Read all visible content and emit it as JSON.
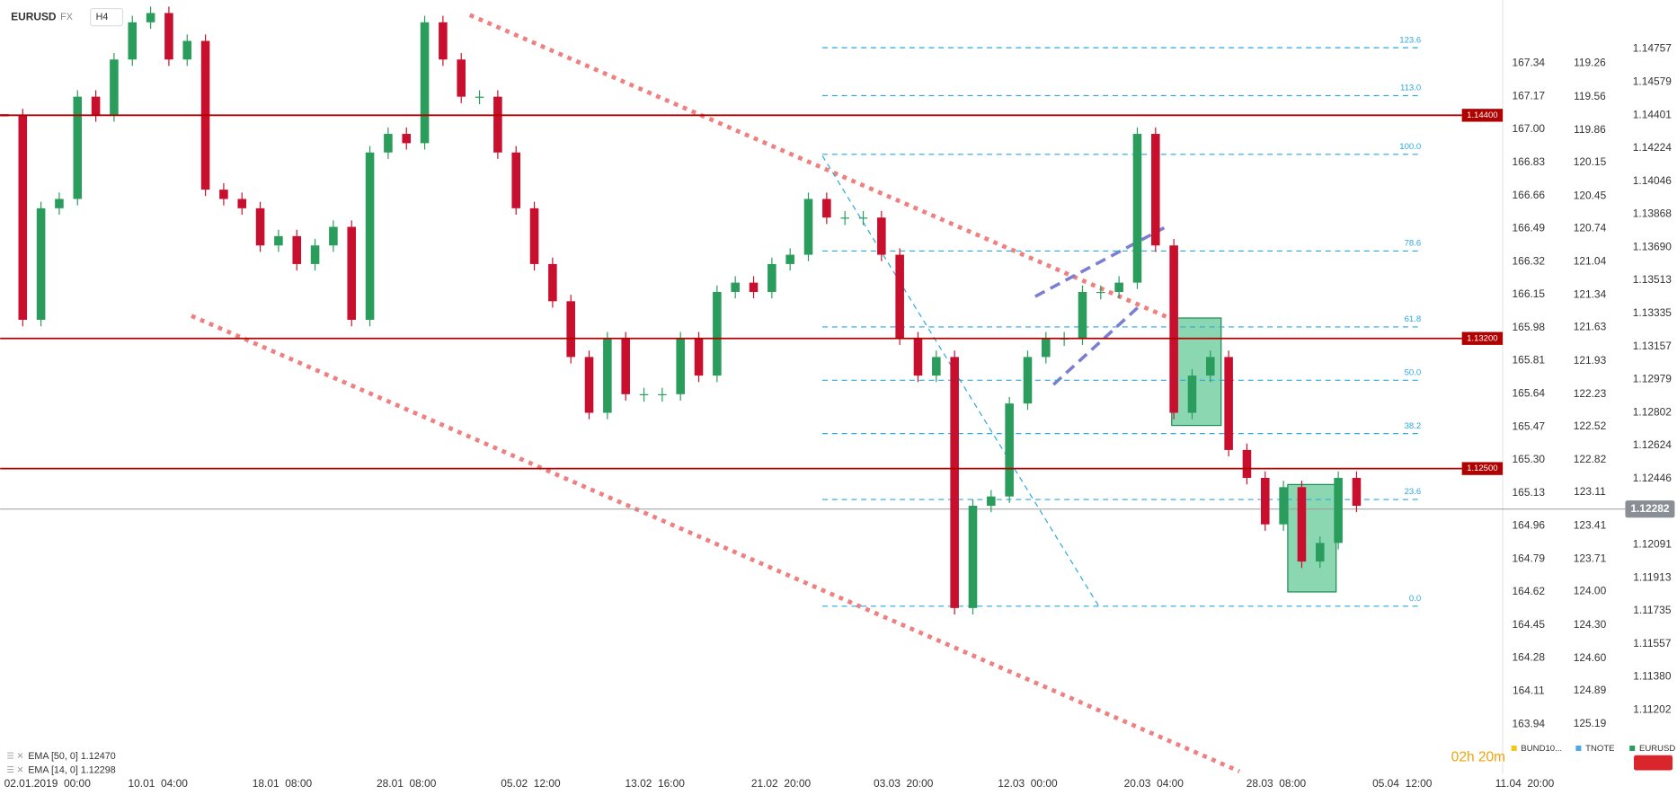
{
  "header": {
    "symbol": "EURUSD",
    "market": "FX",
    "interval": "H4"
  },
  "chart_data": {
    "type": "candlestick",
    "series": [
      {
        "name": "EURUSD",
        "up_color": "#2a9d5c",
        "down_color": "#c8102e",
        "values": [
          1.144,
          1.133,
          1.139,
          1.1395,
          1.145,
          1.144,
          1.147,
          1.149,
          1.1495,
          1.147,
          1.148,
          1.14,
          1.1395,
          1.139,
          1.137,
          1.1375,
          1.136,
          1.137,
          1.138,
          1.133,
          1.142,
          1.143,
          1.1425,
          1.149,
          1.147,
          1.145,
          1.145,
          1.142,
          1.139,
          1.136,
          1.134,
          1.131,
          1.128,
          1.132,
          1.129,
          1.129,
          1.129,
          1.132,
          1.13,
          1.1345,
          1.135,
          1.1345,
          1.136,
          1.1365,
          1.1395,
          1.1385,
          1.1385,
          1.1385,
          1.1365,
          1.132,
          1.13,
          1.131,
          1.1175,
          1.123,
          1.1235,
          1.1285,
          1.131,
          1.132,
          1.132,
          1.1345,
          1.1345,
          1.135,
          1.143,
          1.137,
          1.128,
          1.13,
          1.131,
          1.126,
          1.1245,
          1.122,
          1.124,
          1.12,
          1.121,
          1.1245,
          1.123
        ]
      }
    ],
    "xlim": [
      -0.235,
      82
    ],
    "xticks": [
      {
        "value": 2.35,
        "label": "02.01.2019  00:00"
      },
      {
        "value": 8.4,
        "label": "10.01  04:00"
      },
      {
        "value": 15.2,
        "label": "18.01  08:00"
      },
      {
        "value": 22,
        "label": "28.01  08:00"
      },
      {
        "value": 28.8,
        "label": "05.02  12:00"
      },
      {
        "value": 35.6,
        "label": "13.02  16:00"
      },
      {
        "value": 42.5,
        "label": "21.02  20:00"
      },
      {
        "value": 49.2,
        "label": "03.03  20:00"
      },
      {
        "value": 56,
        "label": "12.03  00:00"
      },
      {
        "value": 62.9,
        "label": "20.03  04:00"
      },
      {
        "value": 69.6,
        "label": "28.03  08:00"
      },
      {
        "value": 76.5,
        "label": "05.04  12:00"
      },
      {
        "value": 83.2,
        "label": "11.04  20:00"
      }
    ],
    "ylim": [
      1.1086,
      1.1502
    ],
    "yticks": [
      1.14757,
      1.14579,
      1.14401,
      1.14224,
      1.14046,
      1.13868,
      {
        "value": 1.1369,
        "label": "1.13690"
      },
      1.13513,
      1.13335,
      1.13157,
      1.12979,
      1.12802,
      1.12624,
      1.12446,
      1.12091,
      1.11913,
      1.11735,
      1.11557,
      {
        "value": 1.1138,
        "label": "1.11380"
      },
      1.11202
    ],
    "axes": [
      {
        "name": "BUND10...",
        "color": "#f5c518",
        "lim": [
          163.686,
          167.666
        ],
        "ticks": [
          163.94,
          164.11,
          164.28,
          164.45,
          164.62,
          164.79,
          164.96,
          165.13,
          {
            "value": 165.3,
            "label": "165.30"
          },
          165.47,
          165.64,
          165.81,
          165.98,
          166.15,
          166.32,
          166.49,
          166.66,
          166.83,
          {
            "value": 167,
            "label": "167.00"
          },
          167.17,
          167.34
        ]
      },
      {
        "name": "TNOTE",
        "color": "#4aa8e8",
        "lim": [
          125.634,
          118.691
        ],
        "ticks": [
          125.19,
          124.89,
          {
            "value": 124.6,
            "label": "124.60"
          },
          {
            "value": 124.3,
            "label": "124.30"
          },
          {
            "value": 124,
            "label": "124.00"
          },
          123.71,
          123.41,
          123.11,
          122.82,
          122.52,
          122.23,
          121.93,
          121.63,
          121.34,
          121.04,
          120.74,
          120.45,
          120.15,
          119.86,
          119.56,
          119.26
        ]
      }
    ],
    "levels": {
      "color": "#b00000",
      "values": [
        1.144,
        1.132,
        1.125
      ],
      "value_labels": [
        "1.14400",
        "1.13200",
        "1.12500"
      ]
    },
    "last_price": {
      "value": 1.12282
    },
    "fibonacci": {
      "color": "#29a8e0",
      "low": 1.1176,
      "high": 1.1419,
      "levels": [
        123.6,
        113,
        100,
        78.6,
        61.8,
        50,
        38.2,
        23.6,
        0
      ],
      "value_labels": [
        "123.6",
        "113.0",
        "100.0",
        "78.6",
        "61.8",
        "50.0",
        "38.2",
        "23.6",
        "0.0"
      ]
    },
    "indicators": [
      "EMA [50, 0] 1.12470",
      "EMA [14, 0] 1.12298"
    ],
    "countdown": "02h 20m"
  }
}
